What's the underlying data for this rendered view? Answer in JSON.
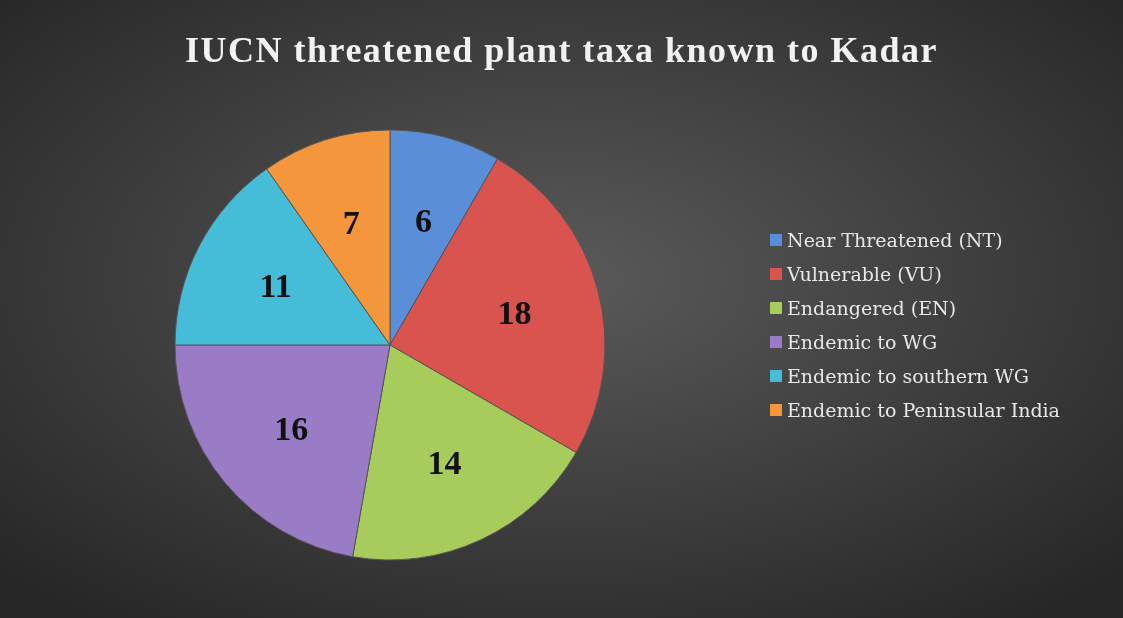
{
  "chart_data": {
    "type": "pie",
    "title": "IUCN threatened plant taxa known to Kadar",
    "categories": [
      "Near Threatened (NT)",
      "Vulnerable (VU)",
      "Endangered (EN)",
      "Endemic to WG",
      "Endemic to southern WG",
      "Endemic to Peninsular India"
    ],
    "values": [
      6,
      18,
      14,
      16,
      11,
      7
    ],
    "colors": [
      "#5b8ed8",
      "#d9534f",
      "#a8cc5c",
      "#9a7cc6",
      "#45bcd8",
      "#f4963c"
    ],
    "data_labels": true,
    "legend": "right"
  }
}
